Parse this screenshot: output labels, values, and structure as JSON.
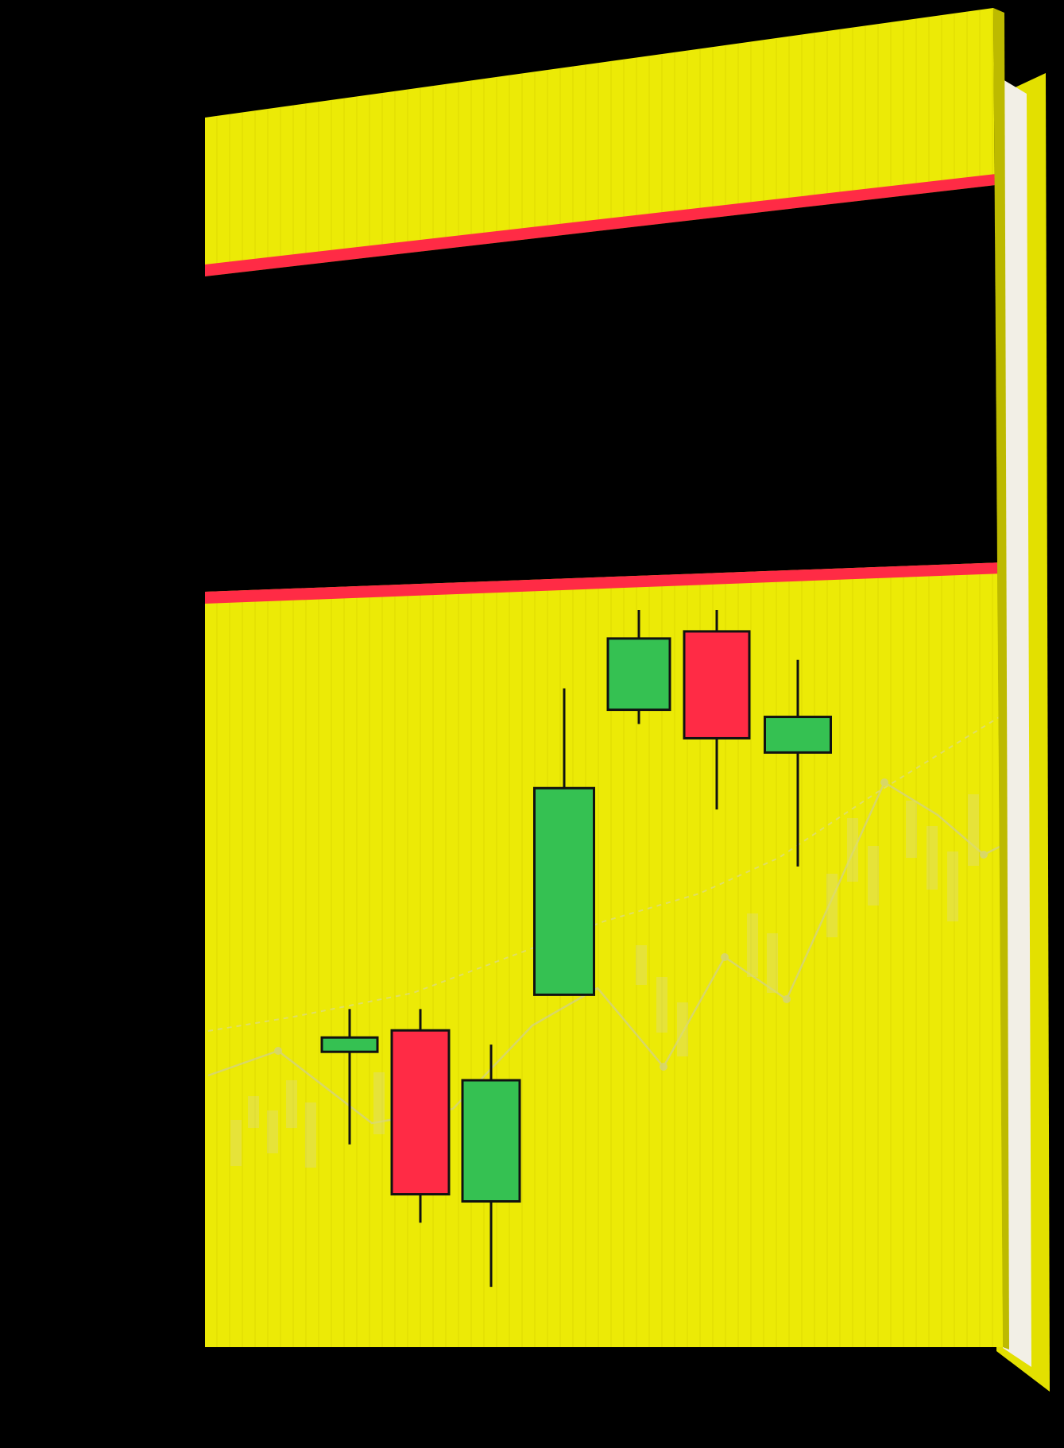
{
  "colors": {
    "background": "#000000",
    "cover": "#ecea06",
    "cover_shade": "#d9d600",
    "spine": "#e3e000",
    "pages": "#f2efe6",
    "stripe": "#ff2b45",
    "title_band": "#000000",
    "bull": "#35c152",
    "bear": "#ff2b45",
    "wick": "#111111",
    "faint_line": "#c9c7b8"
  },
  "icons": {
    "book": "book-icon"
  },
  "cover": {
    "title": "",
    "subtitle": ""
  },
  "candles": [
    {
      "direction": "bull",
      "open": 0.39,
      "close": 0.4,
      "high": 0.44,
      "low": 0.25
    },
    {
      "direction": "bear",
      "open": 0.41,
      "close": 0.18,
      "high": 0.44,
      "low": 0.14
    },
    {
      "direction": "bull",
      "open": 0.17,
      "close": 0.34,
      "high": 0.39,
      "low": 0.05
    },
    {
      "direction": "bull",
      "open": 0.46,
      "close": 0.75,
      "high": 0.89,
      "low": 0.46
    },
    {
      "direction": "bull",
      "open": 0.86,
      "close": 0.96,
      "high": 1.0,
      "low": 0.84
    },
    {
      "direction": "bear",
      "open": 0.97,
      "close": 0.82,
      "high": 1.0,
      "low": 0.72
    },
    {
      "direction": "bull",
      "open": 0.8,
      "close": 0.85,
      "high": 0.93,
      "low": 0.64
    }
  ]
}
